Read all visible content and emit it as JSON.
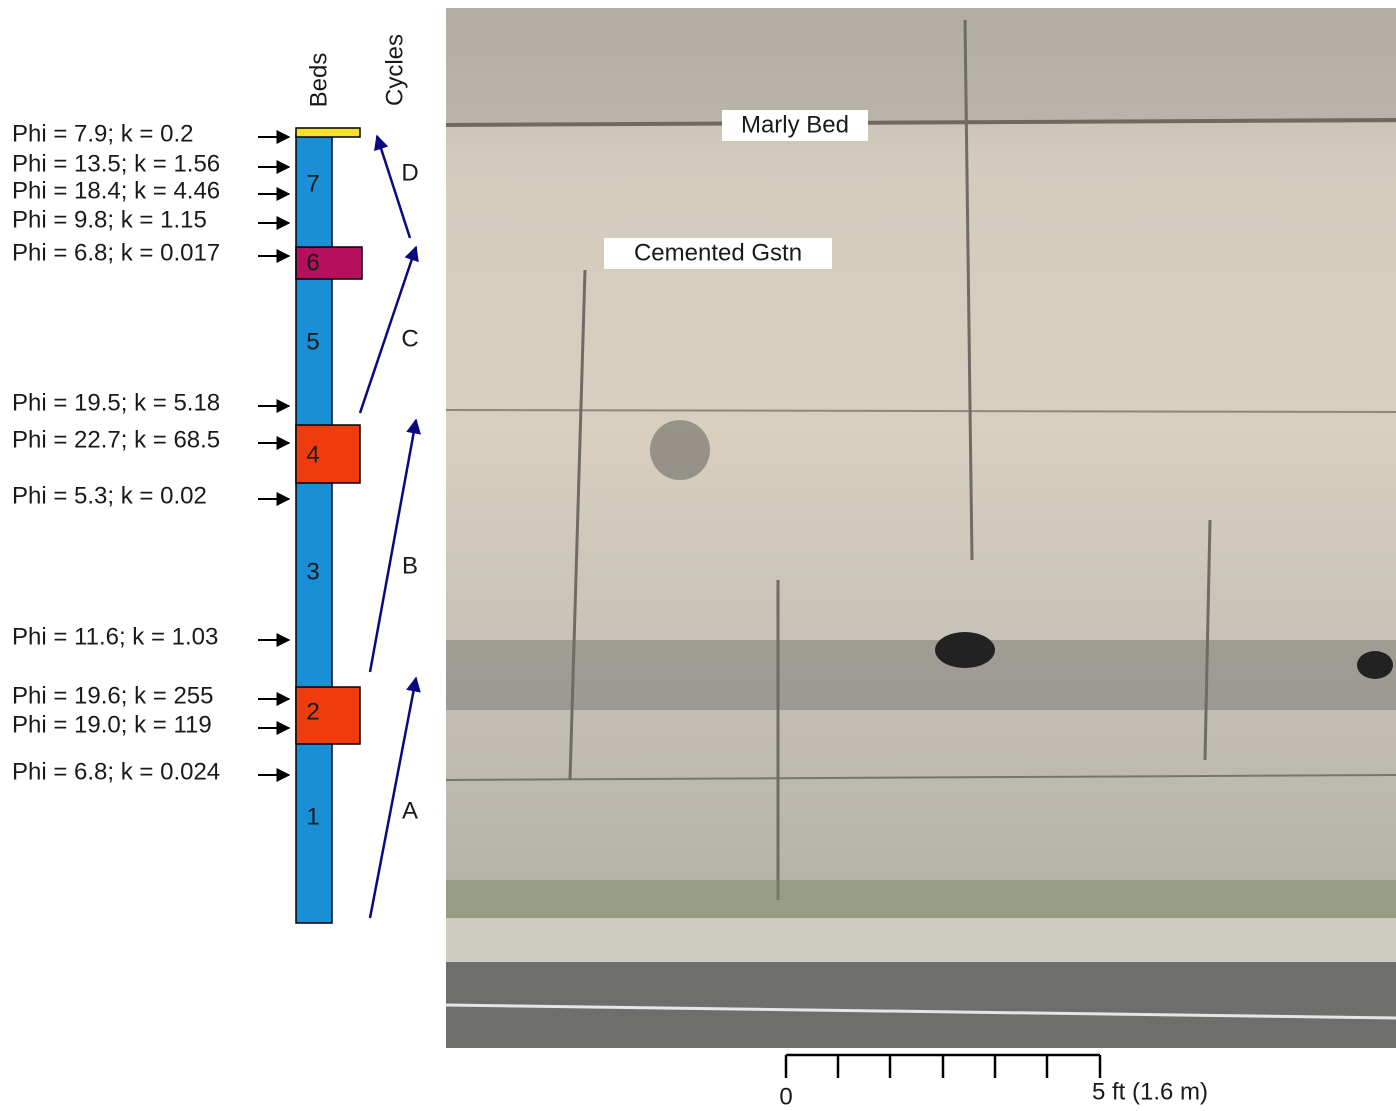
{
  "headers": {
    "beds": "Beds",
    "cycles": "Cycles"
  },
  "measurements": [
    "Phi = 7.9; k = 0.2",
    "Phi = 13.5; k = 1.56",
    "Phi = 18.4; k = 4.46",
    "Phi = 9.8; k = 1.15",
    "Phi = 6.8; k = 0.017",
    "Phi = 19.5; k = 5.18",
    "Phi = 22.7; k = 68.5",
    "Phi = 5.3; k = 0.02",
    "Phi = 11.6; k = 1.03",
    "Phi = 19.6; k = 255",
    "Phi = 19.0; k = 119",
    "Phi = 6.8; k = 0.024"
  ],
  "beds": [
    "1",
    "2",
    "3",
    "4",
    "5",
    "6",
    "7"
  ],
  "cycles": [
    "A",
    "B",
    "C",
    "D"
  ],
  "photo_labels": [
    "Marly Bed",
    "Cemented Gstn"
  ],
  "scale_bar": {
    "start": "0",
    "end": "5 ft (1.6 m)"
  }
}
